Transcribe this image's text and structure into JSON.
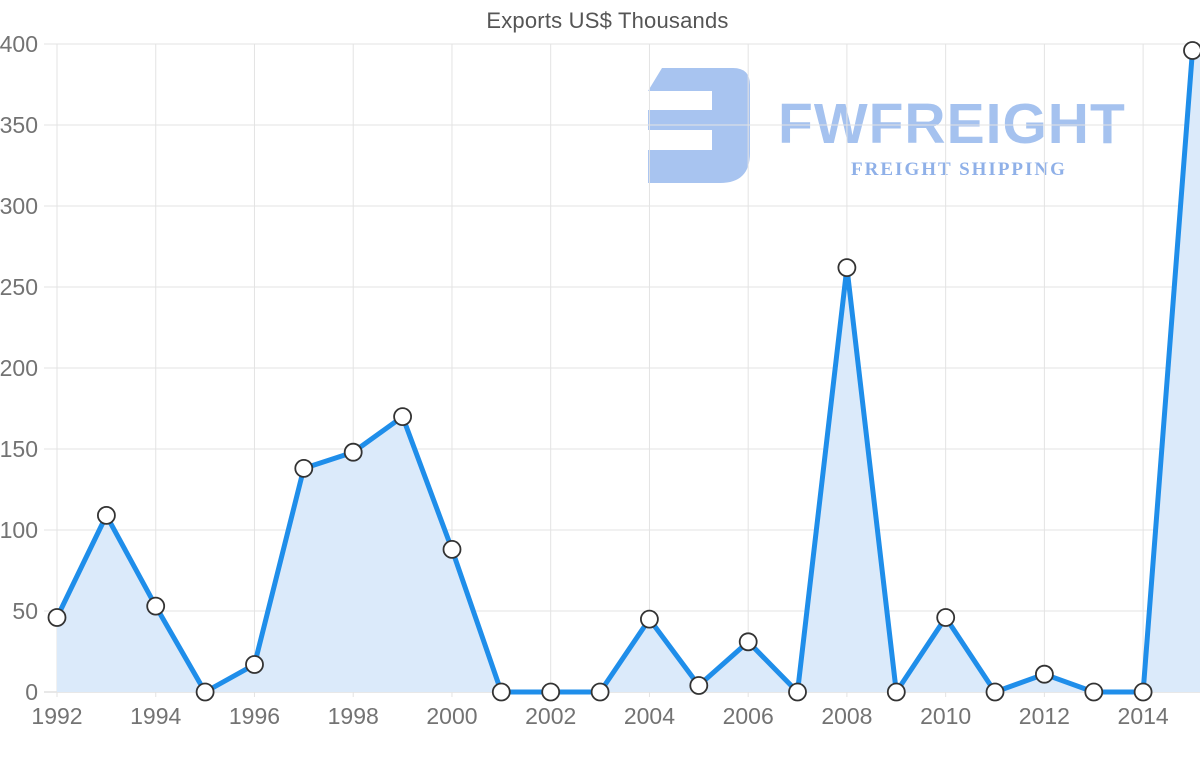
{
  "title": "Exports US$ Thousands",
  "watermark": {
    "brand": "FWFREIGHT",
    "tagline": "FREIGHT SHIPPING",
    "icon": "fwfreight-f-mark",
    "brand_color": "#a5c2ef",
    "tagline_color": "#8fb0e8",
    "icon_color": "#a8c4f0"
  },
  "colors": {
    "line": "#1f8eea",
    "fill": "#dbeafa",
    "grid": "#e3e3e3",
    "axis": "#d2d2d2",
    "marker_fill": "#ffffff",
    "marker_stroke": "#333333",
    "tick_label": "#737373",
    "title": "#555555"
  },
  "chart_data": {
    "type": "area",
    "title": "Exports US$ Thousands",
    "xlabel": "",
    "ylabel": "",
    "x": [
      1992,
      1993,
      1994,
      1995,
      1996,
      1997,
      1998,
      1999,
      2000,
      2001,
      2002,
      2003,
      2004,
      2005,
      2006,
      2007,
      2008,
      2009,
      2010,
      2011,
      2012,
      2013,
      2014,
      2015
    ],
    "series": [
      {
        "name": "Exports US$ Thousands",
        "values": [
          46,
          109,
          53,
          0,
          17,
          138,
          148,
          170,
          88,
          0,
          0,
          0,
          45,
          4,
          31,
          0,
          262,
          0,
          46,
          0,
          11,
          0,
          0,
          396
        ]
      }
    ],
    "ylim": [
      0,
      400
    ],
    "y_ticks": [
      0,
      50,
      100,
      150,
      200,
      250,
      300,
      350,
      400
    ],
    "x_tick_labels": [
      "1992",
      "1994",
      "1996",
      "1998",
      "2000",
      "2002",
      "2004",
      "2006",
      "2008",
      "2010",
      "2012",
      "2014"
    ],
    "grid": true,
    "legend_position": "none",
    "marker": "circle-white"
  }
}
